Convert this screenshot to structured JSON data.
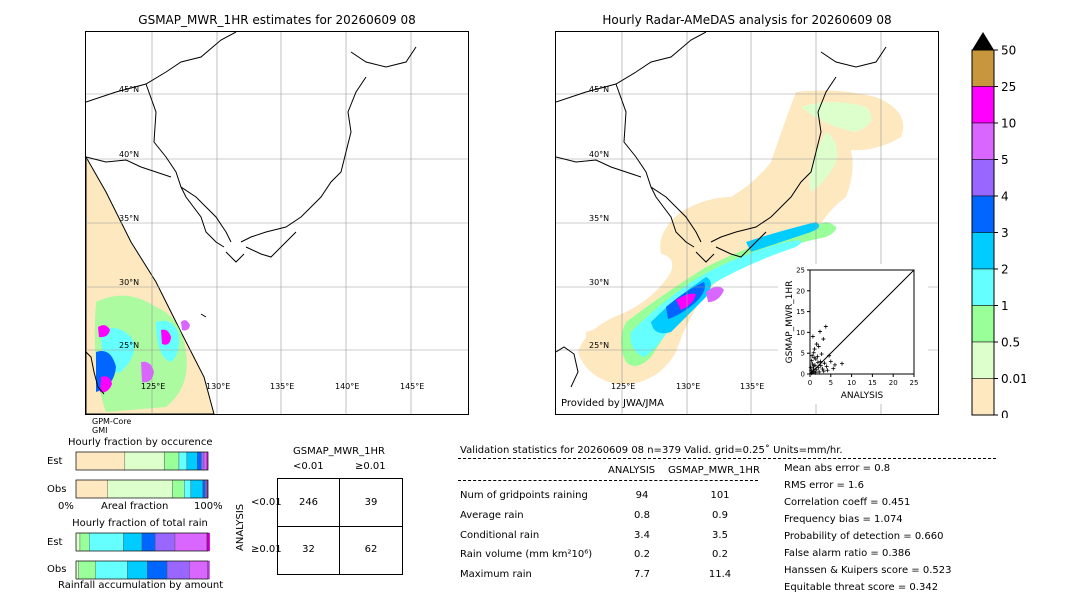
{
  "left_panel": {
    "title": "GSMAP_MWR_1HR estimates for 20260609 08",
    "lat_labels": [
      "45°N",
      "40°N",
      "35°N",
      "30°N",
      "25°N"
    ],
    "lon_labels": [
      "125°E",
      "130°E",
      "135°E",
      "140°E",
      "145°E"
    ],
    "swath_labels": [
      "GPM-Core",
      "GMI"
    ]
  },
  "right_panel": {
    "title": "Hourly Radar-AMeDAS analysis for 20260609 08",
    "lat_labels": [
      "45°N",
      "40°N",
      "35°N",
      "30°N",
      "25°N"
    ],
    "lon_labels": [
      "125°E",
      "130°E",
      "135°E"
    ],
    "provider": "Provided by JWA/JMA"
  },
  "colorbar": {
    "labels": [
      "50",
      "25",
      "10",
      "5",
      "4",
      "3",
      "2",
      "1",
      "0.5",
      "0.01",
      "0"
    ],
    "colors": [
      "#c8963c",
      "#ff00ff",
      "#d966ff",
      "#9966ff",
      "#0066ff",
      "#00ccff",
      "#66ffff",
      "#99ff99",
      "#ddffcc",
      "#fde8c0"
    ],
    "over_color": "#000000"
  },
  "chart_data": [
    {
      "type": "scatter",
      "title": "",
      "xlabel": "ANALYSIS",
      "ylabel": "GSMAP_MWR_1HR",
      "xlim": [
        0,
        25
      ],
      "ylim": [
        0,
        25
      ],
      "x_ticks": [
        "0",
        "5",
        "10",
        "15",
        "20",
        "25"
      ],
      "y_ticks": [
        "0",
        "5",
        "10",
        "15",
        "20",
        "25"
      ],
      "points": [
        [
          0.5,
          0.4
        ],
        [
          0.8,
          1.2
        ],
        [
          1.0,
          0.6
        ],
        [
          1.2,
          2.1
        ],
        [
          1.5,
          1.0
        ],
        [
          0.3,
          0.8
        ],
        [
          2.0,
          1.5
        ],
        [
          2.5,
          3.0
        ],
        [
          0.6,
          2.4
        ],
        [
          1.8,
          4.2
        ],
        [
          3.0,
          1.2
        ],
        [
          0.9,
          5.1
        ],
        [
          1.4,
          3.6
        ],
        [
          2.2,
          0.5
        ],
        [
          3.5,
          2.6
        ],
        [
          0.4,
          3.2
        ],
        [
          1.1,
          6.0
        ],
        [
          2.8,
          4.8
        ],
        [
          4.0,
          1.8
        ],
        [
          1.6,
          7.2
        ],
        [
          0.7,
          9.0
        ],
        [
          3.2,
          8.4
        ],
        [
          2.4,
          10.2
        ],
        [
          3.8,
          11.4
        ],
        [
          5.0,
          3.0
        ],
        [
          6.0,
          2.2
        ],
        [
          7.7,
          2.5
        ],
        [
          4.6,
          4.4
        ],
        [
          1.3,
          0.3
        ],
        [
          0.2,
          1.6
        ],
        [
          2.6,
          2.0
        ],
        [
          1.9,
          2.8
        ],
        [
          0.5,
          4.4
        ],
        [
          3.3,
          0.7
        ],
        [
          0.9,
          1.9
        ],
        [
          4.2,
          0.9
        ],
        [
          5.6,
          1.3
        ],
        [
          2.1,
          6.6
        ],
        [
          1.0,
          3.9
        ],
        [
          0.4,
          0.2
        ]
      ]
    },
    {
      "type": "bar",
      "title": "Hourly fraction by occurence",
      "categories": [
        "Est",
        "Obs"
      ],
      "xlabel": "Areal fraction",
      "x_ticks": [
        "0%",
        "100%"
      ],
      "colors": [
        "#fde8c0",
        "#ddffcc",
        "#99ff99",
        "#66ffff",
        "#00ccff",
        "#0066ff",
        "#9966ff",
        "#d966ff",
        "#ff00ff"
      ],
      "series_fractions": [
        [
          0.37,
          0.3,
          0.11,
          0.06,
          0.08,
          0.03,
          0.02,
          0.02,
          0.01
        ],
        [
          0.24,
          0.49,
          0.09,
          0.05,
          0.09,
          0.02,
          0.01,
          0.005,
          0.005
        ]
      ]
    },
    {
      "type": "bar",
      "title": "Hourly fraction of total rain",
      "categories": [
        "Est",
        "Obs"
      ],
      "xlabel": "Rainfall accumulation by amount",
      "colors": [
        "#fde8c0",
        "#ddffcc",
        "#99ff99",
        "#66ffff",
        "#00ccff",
        "#0066ff",
        "#9966ff",
        "#d966ff",
        "#ff00ff"
      ],
      "series_fractions": [
        [
          0.0,
          0.03,
          0.07,
          0.26,
          0.14,
          0.1,
          0.15,
          0.24,
          0.07
        ],
        [
          0.0,
          0.02,
          0.13,
          0.24,
          0.15,
          0.15,
          0.17,
          0.16,
          0.0
        ]
      ]
    },
    {
      "type": "table",
      "title": "GSMAP_MWR_1HR",
      "col_headers": [
        "<0.01",
        "≥0.01"
      ],
      "row_label": "ANALYSIS",
      "row_headers": [
        "<0.01",
        "≥0.01"
      ],
      "cells": [
        [
          "246",
          "39"
        ],
        [
          "32",
          "62"
        ]
      ]
    }
  ],
  "validation": {
    "header": "Validation statistics for 20260609 08  n=379 Valid. grid=0.25˚ Units=mm/hr.",
    "col_analysis": "ANALYSIS",
    "col_gsmap": "GSMAP_MWR_1HR",
    "rows": [
      {
        "label": "Num of gridpoints raining",
        "a": "94",
        "g": "101"
      },
      {
        "label": "Average rain",
        "a": "0.8",
        "g": "0.9"
      },
      {
        "label": "Conditional rain",
        "a": "3.4",
        "g": "3.5"
      },
      {
        "label": "Rain volume (mm km²10⁶)",
        "a": "0.2",
        "g": "0.2"
      },
      {
        "label": "Maximum rain",
        "a": "7.7",
        "g": "11.4"
      }
    ],
    "scores": [
      "Mean abs error =    0.8",
      "RMS error =    1.6",
      "Correlation coeff =  0.451",
      "Frequency bias =  1.074",
      "Probability of detection =  0.660",
      "False alarm ratio =  0.386",
      "Hanssen & Kuipers score =  0.523",
      "Equitable threat score =  0.342"
    ]
  }
}
